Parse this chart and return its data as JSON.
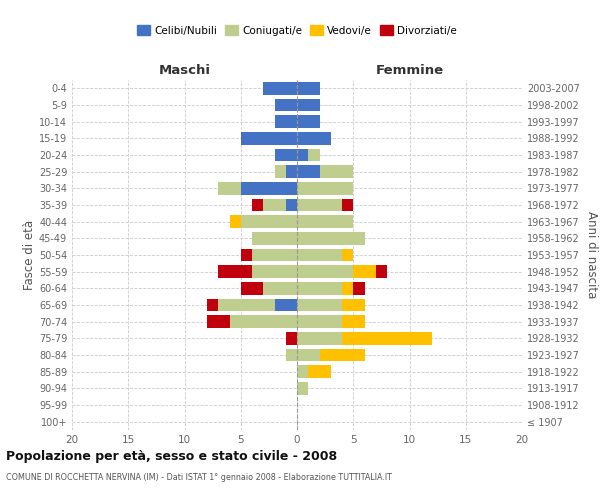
{
  "age_groups": [
    "100+",
    "95-99",
    "90-94",
    "85-89",
    "80-84",
    "75-79",
    "70-74",
    "65-69",
    "60-64",
    "55-59",
    "50-54",
    "45-49",
    "40-44",
    "35-39",
    "30-34",
    "25-29",
    "20-24",
    "15-19",
    "10-14",
    "5-9",
    "0-4"
  ],
  "birth_years": [
    "≤ 1907",
    "1908-1912",
    "1913-1917",
    "1918-1922",
    "1923-1927",
    "1928-1932",
    "1933-1937",
    "1938-1942",
    "1943-1947",
    "1948-1952",
    "1953-1957",
    "1958-1962",
    "1963-1967",
    "1968-1972",
    "1973-1977",
    "1978-1982",
    "1983-1987",
    "1988-1992",
    "1993-1997",
    "1998-2002",
    "2003-2007"
  ],
  "males": {
    "celibi": [
      0,
      0,
      0,
      0,
      0,
      0,
      0,
      2,
      0,
      0,
      0,
      0,
      0,
      1,
      5,
      1,
      2,
      5,
      2,
      2,
      3
    ],
    "coniugati": [
      0,
      0,
      0,
      0,
      1,
      0,
      6,
      5,
      3,
      4,
      4,
      4,
      5,
      2,
      2,
      1,
      0,
      0,
      0,
      0,
      0
    ],
    "vedovi": [
      0,
      0,
      0,
      0,
      0,
      0,
      0,
      0,
      0,
      0,
      0,
      0,
      1,
      0,
      0,
      0,
      0,
      0,
      0,
      0,
      0
    ],
    "divorziati": [
      0,
      0,
      0,
      0,
      0,
      1,
      2,
      1,
      2,
      3,
      1,
      0,
      0,
      1,
      0,
      0,
      0,
      0,
      0,
      0,
      0
    ]
  },
  "females": {
    "nubili": [
      0,
      0,
      0,
      0,
      0,
      0,
      0,
      0,
      0,
      0,
      0,
      0,
      0,
      0,
      0,
      2,
      1,
      3,
      2,
      2,
      2
    ],
    "coniugate": [
      0,
      0,
      1,
      1,
      2,
      4,
      4,
      4,
      4,
      5,
      4,
      6,
      5,
      4,
      5,
      3,
      1,
      0,
      0,
      0,
      0
    ],
    "vedove": [
      0,
      0,
      0,
      2,
      4,
      8,
      2,
      2,
      1,
      2,
      1,
      0,
      0,
      0,
      0,
      0,
      0,
      0,
      0,
      0,
      0
    ],
    "divorziate": [
      0,
      0,
      0,
      0,
      0,
      0,
      0,
      0,
      1,
      1,
      0,
      0,
      0,
      1,
      0,
      0,
      0,
      0,
      0,
      0,
      0
    ]
  },
  "colors": {
    "celibi_nubili": "#4472C4",
    "coniugati": "#BFCD8E",
    "vedovi": "#FFC000",
    "divorziati": "#C0000C"
  },
  "xlim": 20,
  "title": "Popolazione per età, sesso e stato civile - 2008",
  "subtitle": "COMUNE DI ROCCHETTA NERVINA (IM) - Dati ISTAT 1° gennaio 2008 - Elaborazione TUTTITALIA.IT",
  "ylabel_left": "Fasce di età",
  "ylabel_right": "Anni di nascita",
  "xlabel_maschi": "Maschi",
  "xlabel_femmine": "Femmine",
  "legend_labels": [
    "Celibi/Nubili",
    "Coniugati/e",
    "Vedovi/e",
    "Divorziati/e"
  ],
  "bg_color": "#ffffff"
}
